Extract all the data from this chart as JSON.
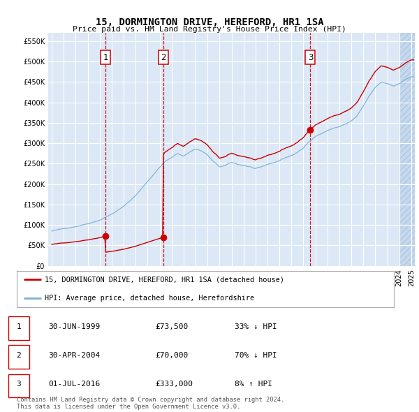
{
  "title": "15, DORMINGTON DRIVE, HEREFORD, HR1 1SA",
  "subtitle": "Price paid vs. HM Land Registry's House Price Index (HPI)",
  "ylim": [
    0,
    570000
  ],
  "yticks": [
    0,
    50000,
    100000,
    150000,
    200000,
    250000,
    300000,
    350000,
    400000,
    450000,
    500000,
    550000
  ],
  "sale_times": [
    1999.5,
    2004.33,
    2016.58
  ],
  "sale_prices": [
    73500,
    70000,
    333000
  ],
  "sale_labels": [
    "1",
    "2",
    "3"
  ],
  "legend_entries": [
    "15, DORMINGTON DRIVE, HEREFORD, HR1 1SA (detached house)",
    "HPI: Average price, detached house, Herefordshire"
  ],
  "table_rows": [
    [
      "1",
      "30-JUN-1999",
      "£73,500",
      "33% ↓ HPI"
    ],
    [
      "2",
      "30-APR-2004",
      "£70,000",
      "70% ↓ HPI"
    ],
    [
      "3",
      "01-JUL-2016",
      "£333,000",
      "8% ↑ HPI"
    ]
  ],
  "footer": "Contains HM Land Registry data © Crown copyright and database right 2024.\nThis data is licensed under the Open Government Licence v3.0.",
  "hpi_color": "#7bafd4",
  "sale_color": "#cc0000",
  "dashed_line_color": "#cc0000",
  "background_color": "#ffffff",
  "plot_bg_color": "#dce8f5",
  "shade_color": "#c5d8ee",
  "grid_color": "#ffffff",
  "highlight_color": "#cfe0f0",
  "xmin": 1994.7,
  "xmax": 2025.3
}
